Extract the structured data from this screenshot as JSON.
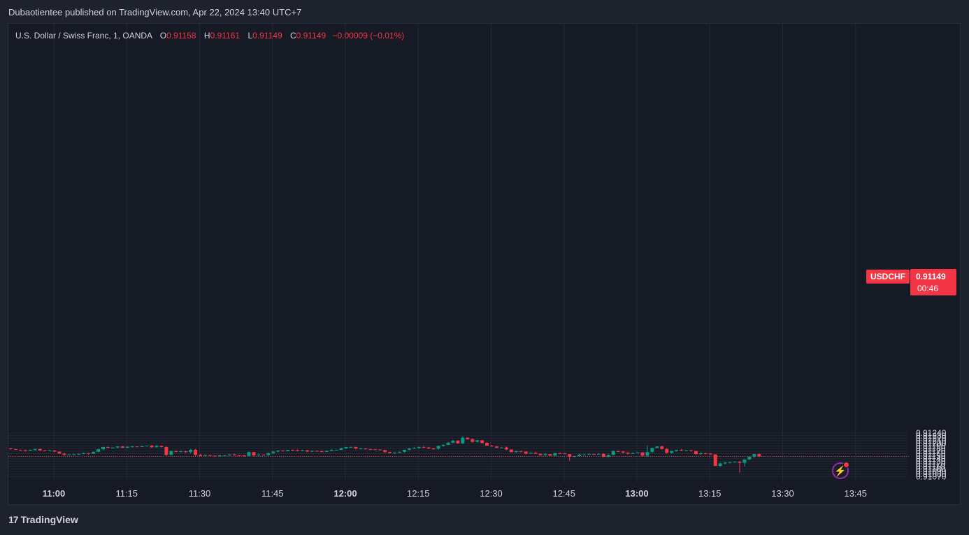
{
  "header": {
    "publisher_line": "Dubaotientee published on TradingView.com, Apr 22, 2024 13:40 UTC+7"
  },
  "legend": {
    "instrument": "U.S. Dollar / Swiss Franc, 1, OANDA",
    "o_label": "O",
    "o_value": "0.91158",
    "h_label": "H",
    "h_value": "0.91161",
    "l_label": "L",
    "l_value": "0.91149",
    "c_label": "C",
    "c_value": "0.91149",
    "change": "−0.00009 (−0.01%)"
  },
  "last_price": {
    "symbol": "USDCHF",
    "price": "0.91149",
    "countdown": "00:46"
  },
  "footer": {
    "logo_mark": "17",
    "brand": "TradingView"
  },
  "icons": {
    "flash": "lightning-icon",
    "logo": "tradingview-logo-icon"
  },
  "colors": {
    "up": "#089981",
    "down": "#f23645",
    "background": "#161a25",
    "grid": "#232834"
  },
  "chart_data": {
    "type": "candlestick",
    "symbol": "USDCHF",
    "interval": "1",
    "ylim": [
      0.91066,
      0.91243
    ],
    "y_ticks": [
      "0.91240",
      "0.91230",
      "0.91220",
      "0.91210",
      "0.91200",
      "0.91190",
      "0.91180",
      "0.91170",
      "0.91160",
      "0.91150",
      "0.91140",
      "0.91130",
      "0.91120",
      "0.91110",
      "0.91100",
      "0.91090",
      "0.91080",
      "0.91070"
    ],
    "x_ticks": [
      {
        "label": "11:00",
        "minute": 0,
        "bold": true
      },
      {
        "label": "11:15",
        "minute": 15,
        "bold": false
      },
      {
        "label": "11:30",
        "minute": 30,
        "bold": false
      },
      {
        "label": "11:45",
        "minute": 45,
        "bold": false
      },
      {
        "label": "12:00",
        "minute": 60,
        "bold": true
      },
      {
        "label": "12:15",
        "minute": 75,
        "bold": false
      },
      {
        "label": "12:30",
        "minute": 90,
        "bold": false
      },
      {
        "label": "12:45",
        "minute": 105,
        "bold": false
      },
      {
        "label": "13:00",
        "minute": 120,
        "bold": true
      },
      {
        "label": "13:15",
        "minute": 135,
        "bold": false
      },
      {
        "label": "13:30",
        "minute": 150,
        "bold": false
      },
      {
        "label": "13:45",
        "minute": 165,
        "bold": false
      }
    ],
    "closes": [
      0.91178,
      0.91175,
      0.91174,
      0.91171,
      0.91174,
      0.91178,
      0.91172,
      0.91171,
      0.91172,
      0.91168,
      0.9116,
      0.91156,
      0.91157,
      0.91157,
      0.91159,
      0.91162,
      0.9116,
      0.91167,
      0.91177,
      0.91186,
      0.91183,
      0.91184,
      0.91188,
      0.91183,
      0.91187,
      0.91188,
      0.91186,
      0.91189,
      0.91191,
      0.91185,
      0.9119,
      0.91186,
      0.91155,
      0.9117,
      0.91167,
      0.91169,
      0.91166,
      0.91175,
      0.91155,
      0.91151,
      0.91154,
      0.91152,
      0.91151,
      0.91153,
      0.91153,
      0.91157,
      0.91154,
      0.91153,
      0.91151,
      0.91166,
      0.91153,
      0.91156,
      0.91154,
      0.91162,
      0.91168,
      0.91172,
      0.91169,
      0.91174,
      0.91173,
      0.9117,
      0.91173,
      0.91168,
      0.91171,
      0.91169,
      0.91167,
      0.91171,
      0.91175,
      0.91175,
      0.91181,
      0.91186,
      0.91186,
      0.9118,
      0.9118,
      0.91178,
      0.91177,
      0.91176,
      0.91174,
      0.91166,
      0.91162,
      0.91164,
      0.91167,
      0.91175,
      0.9118,
      0.91182,
      0.91186,
      0.91184,
      0.9118,
      0.91179,
      0.9119,
      0.91194,
      0.91203,
      0.9121,
      0.912,
      0.91222,
      0.91216,
      0.91206,
      0.91212,
      0.91202,
      0.91191,
      0.91188,
      0.91183,
      0.91184,
      0.91176,
      0.91166,
      0.9117,
      0.91168,
      0.9116,
      0.91163,
      0.91159,
      0.91154,
      0.91158,
      0.91152,
      0.91162,
      0.91161,
      0.91158,
      0.91148,
      0.9115,
      0.91156,
      0.91157,
      0.91159,
      0.91158,
      0.91159,
      0.91147,
      0.91155,
      0.9117,
      0.91168,
      0.91164,
      0.9116,
      0.91162,
      0.91165,
      0.91152,
      0.91166,
      0.91182,
      0.91188,
      0.91178,
      0.91163,
      0.9117,
      0.91174,
      0.91172,
      0.91172,
      0.9117,
      0.91158,
      0.91161,
      0.9116,
      0.91157,
      0.91112,
      0.91122,
      0.91125,
      0.91127,
      0.91128,
      0.91124,
      0.91137,
      0.91148,
      0.91158,
      0.91149
    ]
  }
}
